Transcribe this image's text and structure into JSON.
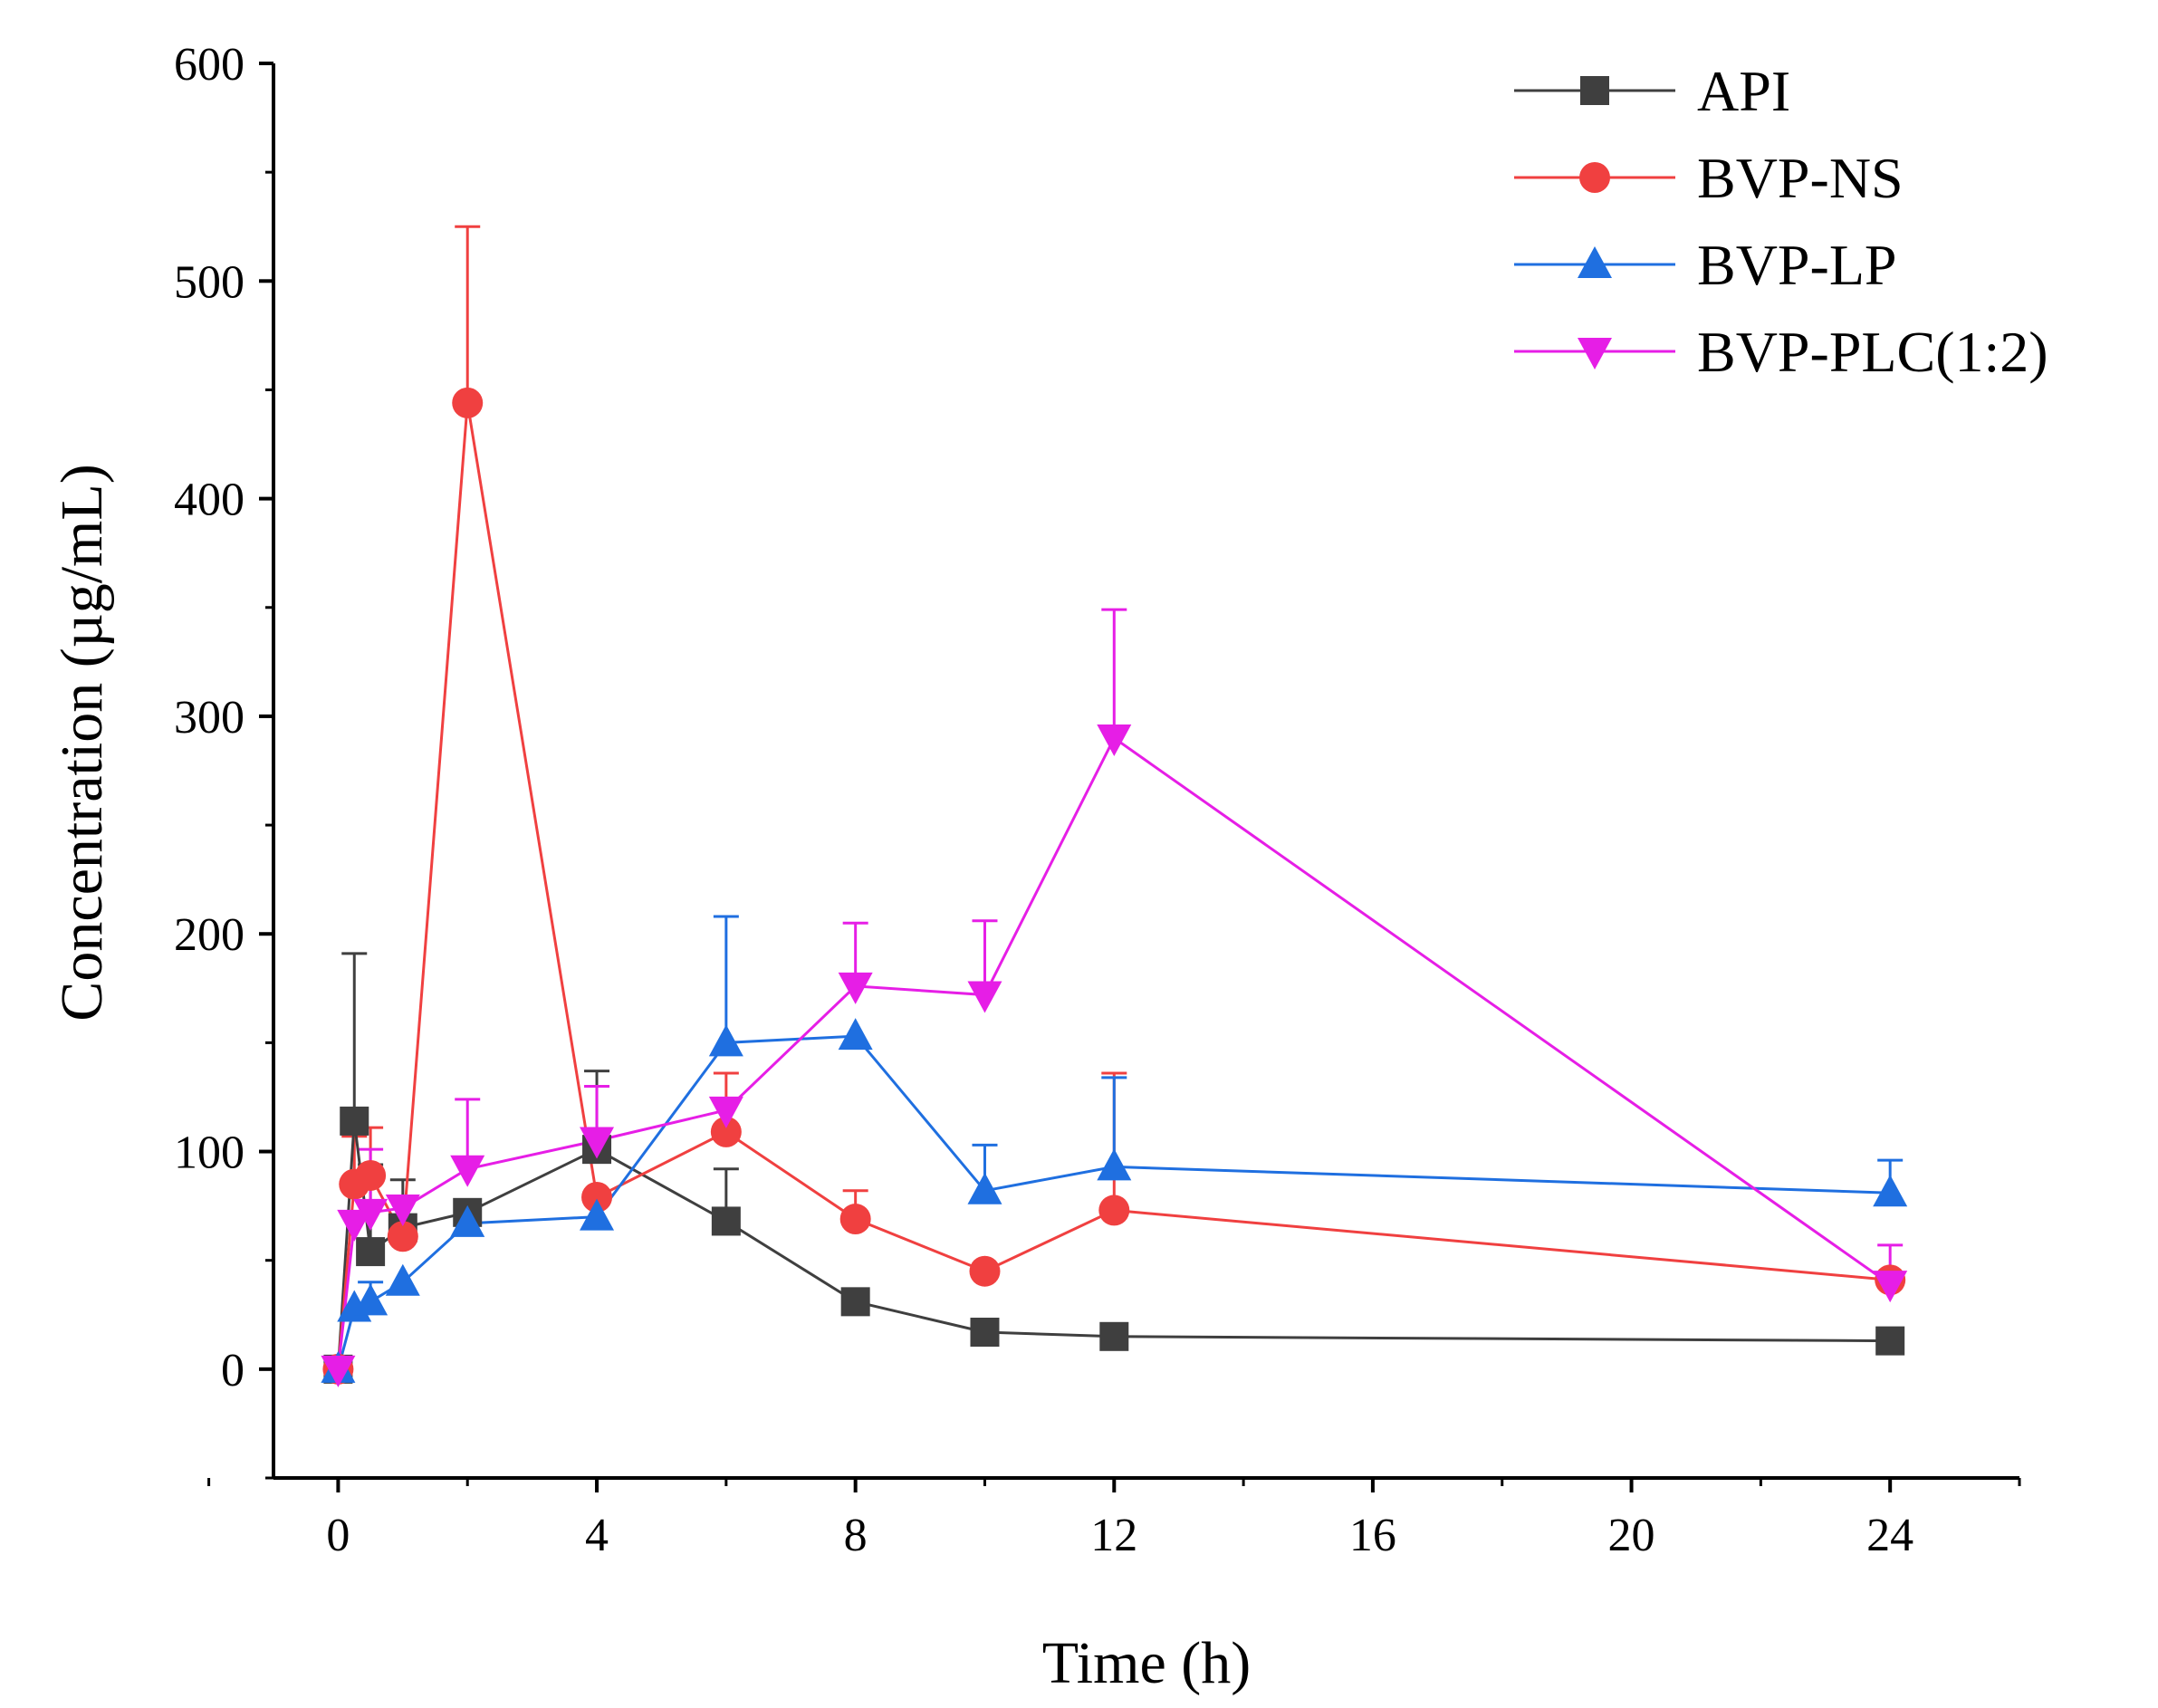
{
  "chart_data": {
    "type": "line",
    "title": "",
    "xlabel": "Time (h)",
    "ylabel": "Concentration (µg/mL)",
    "xlim": [
      -1,
      26
    ],
    "ylim": [
      -50,
      600
    ],
    "x_ticks": [
      0,
      4,
      8,
      12,
      16,
      20,
      24
    ],
    "x_tick_labels": [
      "0",
      "4",
      "8",
      "12",
      "16",
      "20",
      "24"
    ],
    "x_minor_ticks": [
      -2,
      2,
      6,
      10,
      14,
      18,
      22,
      26
    ],
    "y_ticks": [
      0,
      100,
      200,
      300,
      400,
      500,
      600
    ],
    "y_tick_labels": [
      "0",
      "100",
      "200",
      "300",
      "400",
      "500",
      "600"
    ],
    "y_minor_ticks": [
      -50,
      50,
      150,
      250,
      350,
      450,
      550
    ],
    "grid": false,
    "legend_position": "top-right",
    "series": [
      {
        "name": "API",
        "color": "#3f3f3f",
        "marker": "square",
        "x": [
          0,
          0.25,
          0.5,
          1,
          2,
          4,
          6,
          8,
          10,
          12,
          24
        ],
        "y": [
          0,
          114,
          54,
          65,
          72,
          101,
          68,
          31,
          17,
          15,
          13
        ],
        "err": [
          0,
          77,
          40,
          22,
          0,
          36,
          24,
          0,
          0,
          0,
          0
        ]
      },
      {
        "name": "BVP-NS",
        "color": "#f04040",
        "marker": "circle",
        "x": [
          0,
          0.25,
          0.5,
          1,
          2,
          4,
          6,
          8,
          10,
          12,
          24
        ],
        "y": [
          0,
          85,
          89,
          61,
          444,
          79,
          109,
          69,
          45,
          73,
          41
        ],
        "err": [
          0,
          22,
          22,
          0,
          81,
          0,
          27,
          13,
          0,
          63,
          0
        ]
      },
      {
        "name": "BVP-LP",
        "color": "#1f6fe0",
        "marker": "triangle-up",
        "x": [
          0,
          0.25,
          0.5,
          1,
          2,
          4,
          6,
          8,
          10,
          12,
          24
        ],
        "y": [
          0,
          28,
          31,
          40,
          67,
          70,
          150,
          153,
          82,
          93,
          81
        ],
        "err": [
          0,
          0,
          9,
          0,
          0,
          0,
          58,
          0,
          21,
          41,
          15
        ]
      },
      {
        "name": "BVP-PLC(1:2)",
        "color": "#e61ee6",
        "marker": "triangle-down",
        "x": [
          0,
          0.25,
          0.5,
          1,
          2,
          4,
          6,
          8,
          10,
          12,
          24
        ],
        "y": [
          0,
          67,
          72,
          74,
          92,
          105,
          119,
          176,
          172,
          290,
          39
        ],
        "err": [
          0,
          0,
          29,
          0,
          32,
          25,
          0,
          29,
          34,
          59,
          18
        ]
      }
    ]
  }
}
